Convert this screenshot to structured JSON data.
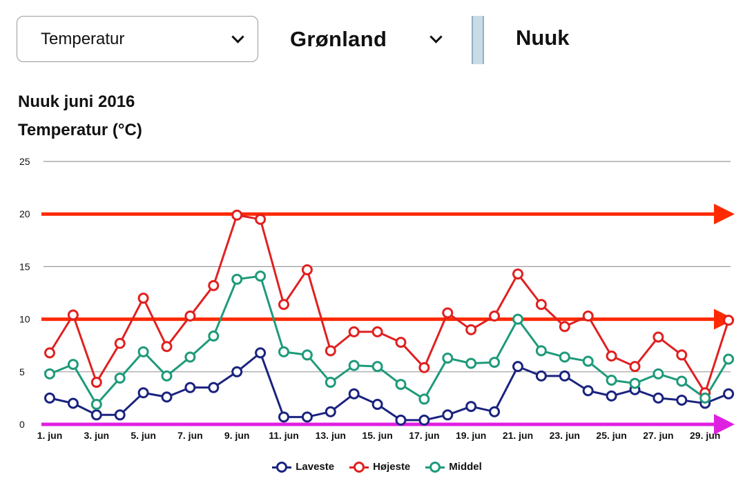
{
  "toolbar": {
    "parameter_select": "Temperatur",
    "region_select": "Grønland",
    "city": "Nuuk"
  },
  "chart_data": {
    "type": "line",
    "title": "Nuuk juni 2016",
    "subtitle": "Temperatur (°C)",
    "xlabel": "",
    "ylabel": "",
    "ylim": [
      0,
      25
    ],
    "yticks": [
      0,
      5,
      10,
      15,
      20,
      25
    ],
    "grid": true,
    "legend_position": "bottom",
    "x": [
      "1. jun",
      "2. jun",
      "3. jun",
      "4. jun",
      "5. jun",
      "6. jun",
      "7. jun",
      "8. jun",
      "9. jun",
      "10. jun",
      "11. jun",
      "12. jun",
      "13. jun",
      "14. jun",
      "15. jun",
      "16. jun",
      "17. jun",
      "18. jun",
      "19. jun",
      "20. jun",
      "21. jun",
      "22. jun",
      "23. jun",
      "24. jun",
      "25. jun",
      "26. jun",
      "27. jun",
      "28. jun",
      "29. jun",
      "30. jun"
    ],
    "xtick_labels": [
      "1. jun",
      "3. jun",
      "5. jun",
      "7. jun",
      "9. jun",
      "11. jun",
      "13. jun",
      "15. jun",
      "17. jun",
      "19. jun",
      "21. jun",
      "23. jun",
      "25. jun",
      "27. jun",
      "29. jun"
    ],
    "series": [
      {
        "name": "Laveste",
        "color": "#1a237e",
        "values": [
          2.5,
          2.0,
          0.9,
          0.9,
          3.0,
          2.6,
          3.5,
          3.5,
          5.0,
          6.8,
          0.7,
          0.7,
          1.2,
          2.9,
          1.9,
          0.4,
          0.4,
          0.9,
          1.7,
          1.2,
          5.5,
          4.6,
          4.6,
          3.2,
          2.7,
          3.3,
          2.5,
          2.3,
          2.0,
          2.9
        ]
      },
      {
        "name": "Højeste",
        "color": "#e02020",
        "values": [
          6.8,
          10.4,
          4.0,
          7.7,
          12.0,
          7.4,
          10.3,
          13.2,
          19.9,
          19.5,
          11.4,
          14.7,
          7.0,
          8.8,
          8.8,
          7.8,
          5.4,
          10.6,
          9.0,
          10.3,
          14.3,
          11.4,
          9.3,
          10.3,
          6.5,
          5.5,
          8.3,
          6.6,
          3.0,
          9.9
        ]
      },
      {
        "name": "Middel",
        "color": "#1e9a7a",
        "values": [
          4.8,
          5.7,
          1.9,
          4.4,
          6.9,
          4.6,
          6.4,
          8.4,
          13.8,
          14.1,
          6.9,
          6.6,
          4.0,
          5.6,
          5.5,
          3.8,
          2.4,
          6.3,
          5.8,
          5.9,
          10.0,
          7.0,
          6.4,
          6.0,
          4.2,
          3.9,
          4.8,
          4.1,
          2.5,
          6.2
        ]
      }
    ],
    "reference_lines": [
      {
        "value": 20,
        "color": "#ff2a00"
      },
      {
        "value": 10,
        "color": "#ff2a00"
      },
      {
        "value": 0,
        "color": "#e020e0"
      }
    ]
  }
}
